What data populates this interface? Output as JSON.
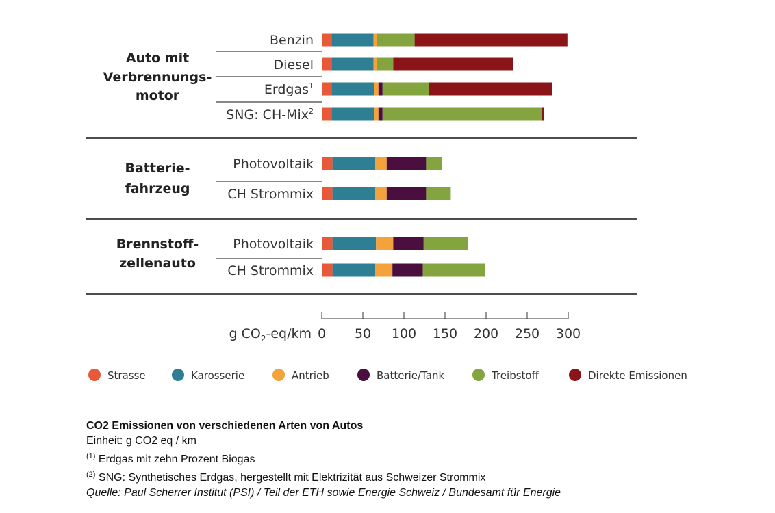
{
  "chart_data": {
    "type": "bar",
    "orientation": "horizontal",
    "stacked": true,
    "xlabel": "g CO₂-eq/km",
    "xlim": [
      0,
      300
    ],
    "xticks": [
      0,
      50,
      100,
      150,
      200,
      250,
      300
    ],
    "grid": false,
    "legend_position": "bottom",
    "components": [
      {
        "name": "Strasse",
        "color": "#e8593a"
      },
      {
        "name": "Karosserie",
        "color": "#2e7f94"
      },
      {
        "name": "Antrieb",
        "color": "#f4a23b"
      },
      {
        "name": "Batterie/Tank",
        "color": "#4a0f3e"
      },
      {
        "name": "Treibstoff",
        "color": "#84a43f"
      },
      {
        "name": "Direkte Emissionen",
        "color": "#8b1419"
      }
    ],
    "groups": [
      {
        "label_lines": [
          "Auto mit",
          "Verbrennungs-",
          "motor"
        ],
        "bars": [
          {
            "label": "Benzin",
            "sup": "",
            "values": [
              12,
              51,
              4,
              0,
              46,
              186
            ]
          },
          {
            "label": "Diesel",
            "sup": "",
            "values": [
              12,
              51,
              4,
              0,
              20,
              146
            ]
          },
          {
            "label": "Erdgas",
            "sup": "1",
            "values": [
              12,
              52,
              5,
              5,
              56,
              150
            ]
          },
          {
            "label": "SNG: CH-Mix",
            "sup": "2",
            "values": [
              12,
              52,
              5,
              5,
              194,
              2
            ]
          }
        ]
      },
      {
        "label_lines": [
          "Batterie-",
          "fahrzeug"
        ],
        "bars": [
          {
            "label": "Photovoltaik",
            "sup": "",
            "values": [
              13,
              52,
              14,
              48,
              19,
              0
            ]
          },
          {
            "label": "CH Strommix",
            "sup": "",
            "values": [
              13,
              52,
              14,
              48,
              30,
              0
            ]
          }
        ]
      },
      {
        "label_lines": [
          "Brennstoff-",
          "zellenauto"
        ],
        "bars": [
          {
            "label": "Photovoltaik",
            "sup": "",
            "values": [
              13,
              53,
              21,
              37,
              54,
              0
            ]
          },
          {
            "label": "CH Strommix",
            "sup": "",
            "values": [
              13,
              52,
              21,
              37,
              76,
              0
            ]
          }
        ]
      }
    ]
  },
  "caption": {
    "title": "CO2 Emissionen von verschiedenen Arten von Autos",
    "unit": "Einheit: g CO2 eq / km",
    "note1_marker": "(1)",
    "note1_text": " Erdgas mit zehn Prozent Biogas",
    "note2_marker": "(2)",
    "note2_text": " SNG: Synthetisches Erdgas, hergestellt mit Elektrizität aus Schweizer Strommix",
    "source": "Quelle: Paul Scherrer Institut (PSI) / Teil der ETH sowie Energie Schweiz / Bundesamt für Energie"
  }
}
